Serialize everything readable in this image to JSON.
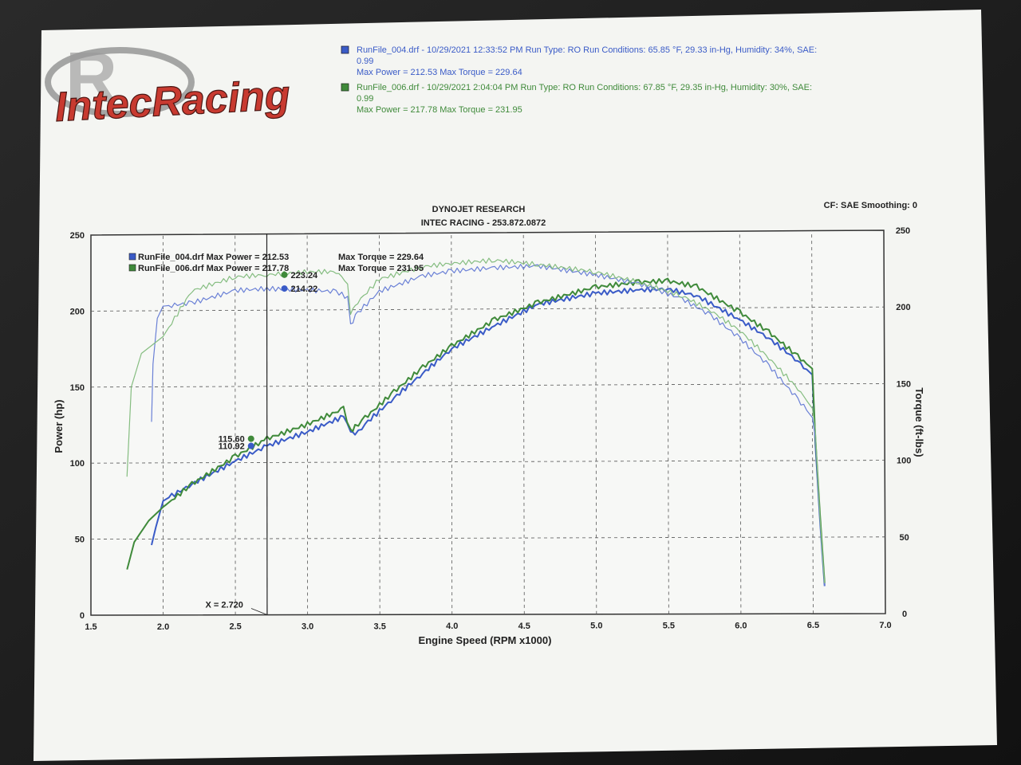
{
  "logo": {
    "text": "IntecRacing",
    "letter": "R"
  },
  "header_runs": [
    {
      "line1": "RunFile_004.drf - 10/29/2021 12:33:52 PM  Run Type: RO  Run Conditions: 65.85 °F, 29.33 in-Hg,  Humidity:  34%, SAE:",
      "line2": "0.99",
      "line3": "Max Power = 212.53  Max Torque = 229.64",
      "color": "#3a5bc7"
    },
    {
      "line1": "RunFile_006.drf - 10/29/2021 2:04:04 PM  Run Type: RO  Run Conditions: 67.85 °F, 29.35 in-Hg,  Humidity:  30%, SAE:",
      "line2": "0.99",
      "line3": "Max Power = 217.78  Max Torque = 231.95",
      "color": "#3f8a3a"
    }
  ],
  "cf_label": "CF: SAE  Smoothing: 0",
  "chart_data": {
    "type": "line",
    "title": "DYNOJET RESEARCH",
    "subtitle": "INTEC RACING - 253.872.0872",
    "xlabel": "Engine Speed (RPM x1000)",
    "ylabel_left": "Power (hp)",
    "ylabel_right": "Torque (ft-lbs)",
    "xlim": [
      1.5,
      7.0
    ],
    "ylim_left": [
      0,
      250
    ],
    "ylim_right": [
      0,
      250
    ],
    "x_ticks": [
      "1.5",
      "2.0",
      "2.5",
      "3.0",
      "3.5",
      "4.0",
      "4.5",
      "5.0",
      "5.5",
      "6.0",
      "6.5",
      "7.0"
    ],
    "y_ticks_left": [
      "0",
      "50",
      "100",
      "150",
      "200",
      "250"
    ],
    "y_ticks_right": [
      "0",
      "50",
      "100",
      "150",
      "200",
      "250"
    ],
    "grid": true,
    "cursor": {
      "x": 2.72,
      "label": "X = 2.720"
    },
    "legend": [
      {
        "name": "RunFile_004.drf",
        "text": "RunFile_004.drf Max Power = 212.53",
        "torque": "Max Torque = 229.64",
        "color": "#3a5bc7"
      },
      {
        "name": "RunFile_006.drf",
        "text": "RunFile_006.drf Max Power = 217.78",
        "torque": "Max Torque = 231.95",
        "color": "#3f8a3a"
      }
    ],
    "markers": [
      {
        "label": "115.60",
        "x": 2.72,
        "y": 115.6,
        "color": "#3f8a3a",
        "side": "left"
      },
      {
        "label": "110.92",
        "x": 2.72,
        "y": 110.92,
        "color": "#3a5bc7",
        "side": "left"
      },
      {
        "label": "223.24",
        "x": 2.72,
        "y": 223.24,
        "color": "#3f8a3a",
        "side": "right"
      },
      {
        "label": "214.22",
        "x": 2.72,
        "y": 214.22,
        "color": "#3a5bc7",
        "side": "right"
      }
    ],
    "series": [
      {
        "name": "RunFile_004.drf",
        "measure": "Power",
        "axis": "left",
        "color": "#3a5bc7",
        "width": 2,
        "x": [
          1.92,
          1.95,
          2.0,
          2.2,
          2.5,
          2.72,
          3.0,
          3.25,
          3.3,
          3.33,
          3.4,
          3.6,
          3.8,
          4.0,
          4.3,
          4.6,
          5.0,
          5.3,
          5.5,
          5.7,
          6.0,
          6.2,
          6.4,
          6.5,
          6.52,
          6.55,
          6.58
        ],
        "y": [
          46,
          58,
          75,
          86,
          101,
          110.9,
          120,
          130,
          120,
          118,
          125,
          142,
          158,
          174,
          189,
          203,
          210,
          212,
          212.5,
          208,
          192,
          180,
          165,
          156,
          110,
          60,
          18
        ]
      },
      {
        "name": "RunFile_006.drf",
        "measure": "Power",
        "axis": "left",
        "color": "#3f8a3a",
        "width": 2,
        "x": [
          1.75,
          1.8,
          1.9,
          2.0,
          2.2,
          2.5,
          2.72,
          3.0,
          3.25,
          3.3,
          3.33,
          3.4,
          3.6,
          3.8,
          4.0,
          4.3,
          4.6,
          5.0,
          5.3,
          5.5,
          5.7,
          6.0,
          6.2,
          6.4,
          6.5,
          6.52,
          6.55,
          6.58
        ],
        "y": [
          30,
          48,
          62,
          71,
          86,
          104,
          115.6,
          125,
          135,
          120,
          123,
          129,
          146,
          162,
          176,
          193,
          204,
          214,
          217,
          217.8,
          214,
          197,
          184,
          168,
          160,
          115,
          65,
          20
        ]
      },
      {
        "name": "RunFile_004.drf",
        "measure": "Torque",
        "axis": "right",
        "color": "#6a80d6",
        "width": 1.2,
        "x": [
          1.92,
          1.93,
          1.96,
          2.0,
          2.2,
          2.5,
          2.72,
          3.0,
          3.2,
          3.28,
          3.3,
          3.35,
          3.5,
          3.8,
          4.0,
          4.3,
          4.6,
          5.0,
          5.3,
          5.6,
          5.8,
          6.0,
          6.2,
          6.4,
          6.5,
          6.52,
          6.55,
          6.58
        ],
        "y": [
          127,
          165,
          195,
          203,
          205,
          213,
          214.2,
          213,
          212,
          208,
          190,
          198,
          212,
          222,
          225,
          227,
          228,
          222,
          216,
          206,
          195,
          180,
          162,
          140,
          128,
          115,
          60,
          18
        ]
      },
      {
        "name": "RunFile_006.drf",
        "measure": "Torque",
        "axis": "right",
        "color": "#85bd80",
        "width": 1.2,
        "x": [
          1.75,
          1.78,
          1.85,
          2.0,
          2.2,
          2.5,
          2.72,
          3.0,
          3.2,
          3.28,
          3.3,
          3.35,
          3.5,
          3.8,
          4.0,
          4.3,
          4.6,
          5.0,
          5.3,
          5.6,
          5.8,
          6.0,
          6.2,
          6.4,
          6.5,
          6.52,
          6.55,
          6.58
        ],
        "y": [
          91,
          150,
          172,
          183,
          213,
          222,
          223.2,
          225,
          225,
          218,
          198,
          205,
          220,
          228,
          230,
          232,
          229,
          224,
          217,
          208,
          198,
          185,
          167,
          147,
          134,
          120,
          62,
          20
        ]
      }
    ]
  }
}
